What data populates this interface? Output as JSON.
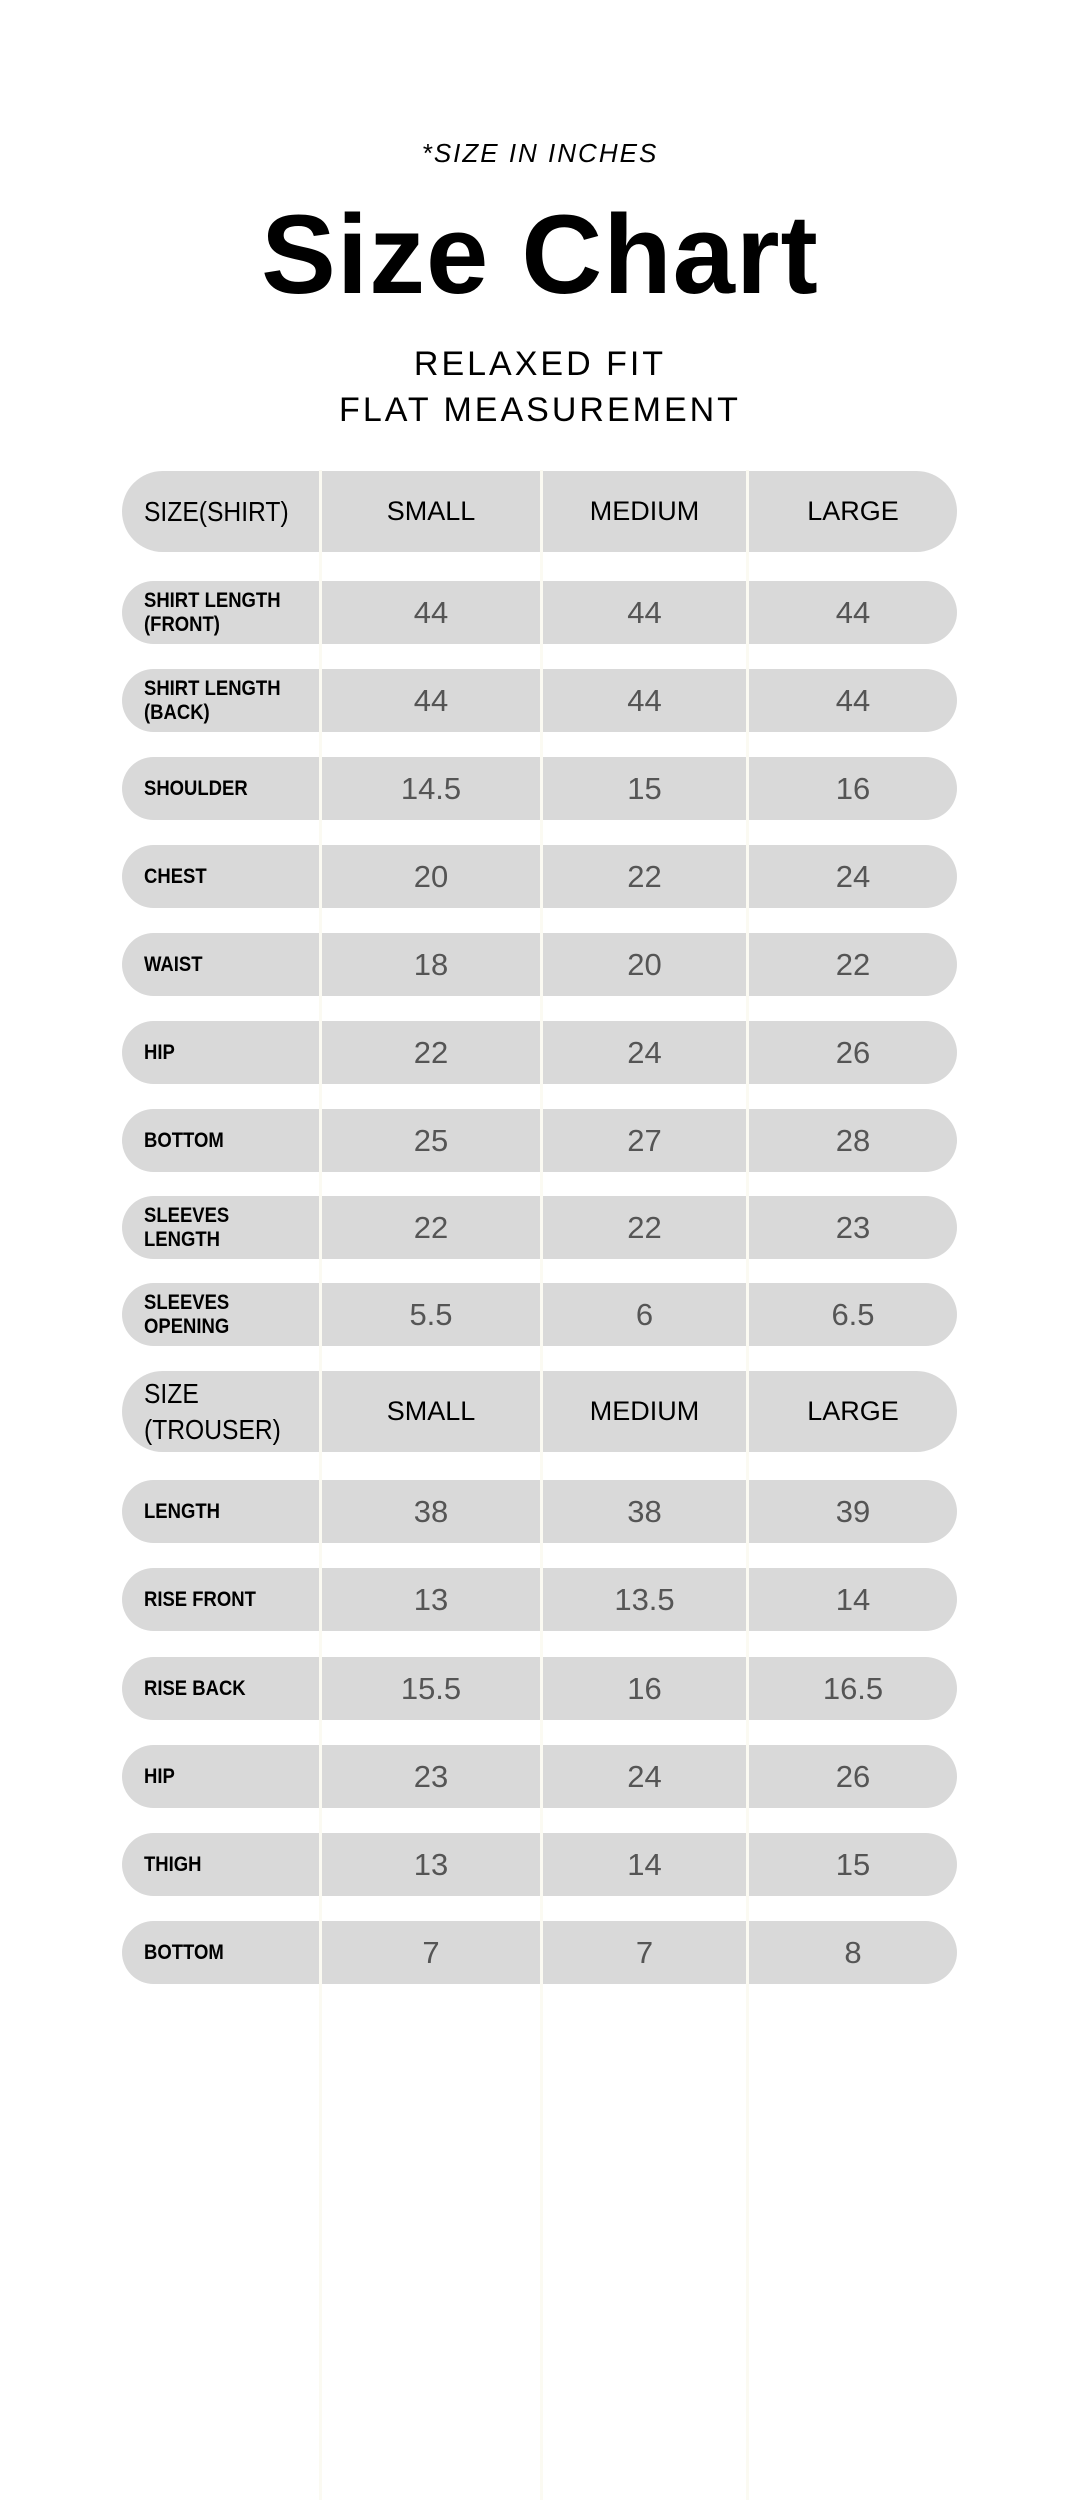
{
  "note": "*SIZE IN INCHES",
  "title": "Size Chart",
  "subtitle_1": "RELAXED FIT",
  "subtitle_2": "FLAT MEASUREMENT",
  "columns": [
    "SMALL",
    "MEDIUM",
    "LARGE"
  ],
  "shirt": {
    "header": "SIZE(SHIRT)",
    "rows": [
      {
        "label": "SHIRT LENGTH\n(FRONT)",
        "values": [
          "44",
          "44",
          "44"
        ]
      },
      {
        "label": "SHIRT LENGTH\n(BACK)",
        "values": [
          "44",
          "44",
          "44"
        ]
      },
      {
        "label": "SHOULDER",
        "values": [
          "14.5",
          "15",
          "16"
        ]
      },
      {
        "label": "CHEST",
        "values": [
          "20",
          "22",
          "24"
        ]
      },
      {
        "label": "WAIST",
        "values": [
          "18",
          "20",
          "22"
        ]
      },
      {
        "label": "HIP",
        "values": [
          "22",
          "24",
          "26"
        ]
      },
      {
        "label": "BOTTOM",
        "values": [
          "25",
          "27",
          "28"
        ]
      },
      {
        "label": "SLEEVES\nLENGTH",
        "values": [
          "22",
          "22",
          "23"
        ]
      },
      {
        "label": "SLEEVES\nOPENING",
        "values": [
          "5.5",
          "6",
          "6.5"
        ]
      }
    ]
  },
  "trouser": {
    "header": "SIZE\n(TROUSER)",
    "rows": [
      {
        "label": "LENGTH",
        "values": [
          "38",
          "38",
          "39"
        ]
      },
      {
        "label": "RISE FRONT",
        "values": [
          "13",
          "13.5",
          "14"
        ]
      },
      {
        "label": "RISE BACK",
        "values": [
          "15.5",
          "16",
          "16.5"
        ]
      },
      {
        "label": "HIP",
        "values": [
          "23",
          "24",
          "26"
        ]
      },
      {
        "label": "THIGH",
        "values": [
          "13",
          "14",
          "15"
        ]
      },
      {
        "label": "BOTTOM",
        "values": [
          "7",
          "7",
          "8"
        ]
      }
    ]
  },
  "colors": {
    "cell_bg": "#d9d9d9",
    "value_text": "#555555",
    "label_text": "#000000"
  }
}
